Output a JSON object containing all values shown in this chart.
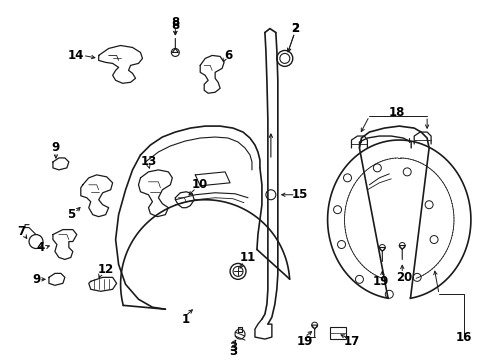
{
  "background_color": "#ffffff",
  "line_color": "#1a1a1a",
  "figsize": [
    4.89,
    3.6
  ],
  "dpi": 100,
  "label_fontsize": 8.5
}
